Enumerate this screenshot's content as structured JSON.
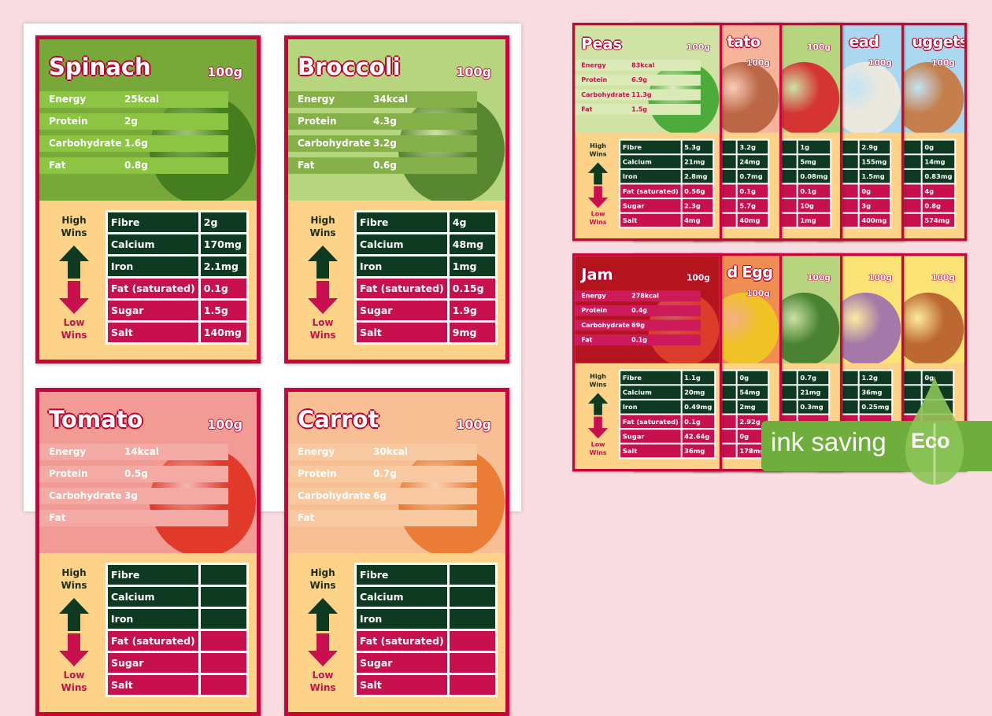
{
  "table_labels": [
    "Fibre",
    "Calcium",
    "Iron",
    "Fat (saturated)",
    "Sugar",
    "Salt"
  ],
  "high_wins": "High Wins",
  "low_wins": "Low Wins",
  "colors": {
    "border": "#c6053e",
    "lower_panel": "#fdd38a",
    "high_row": "#0e3a22",
    "low_row": "#c8104e",
    "eco_green": "#6fae3c"
  },
  "cards": [
    {
      "title": "Spinach",
      "weight": "100g",
      "bg": "#79a83a",
      "bar": "#8cc443",
      "food": "#3f7a1c",
      "nutrients": [
        [
          "Energy",
          "25kcal"
        ],
        [
          "Protein",
          "2g"
        ],
        [
          "Carbohydrate",
          "1.6g"
        ],
        [
          "Fat",
          "0.8g"
        ]
      ],
      "values": [
        "2g",
        "170mg",
        "2.1mg",
        "0.1g",
        "1.5g",
        "140mg"
      ]
    },
    {
      "title": "Broccoli",
      "weight": "100g",
      "bg": "#b7d57f",
      "bar": "#86b04a",
      "food": "#4e7e2a",
      "nutrients": [
        [
          "Energy",
          "34kcal"
        ],
        [
          "Protein",
          "4.3g"
        ],
        [
          "Carbohydrate",
          "3.2g"
        ],
        [
          "Fat",
          "0.6g"
        ]
      ],
      "values": [
        "4g",
        "48mg",
        "1mg",
        "0.15g",
        "1.9g",
        "9mg"
      ]
    },
    {
      "title": "Tomato",
      "weight": "100g",
      "bg": "#f29a94",
      "bar": "#f4aaa4",
      "food": "#e0301e",
      "nutrients": [
        [
          "Energy",
          "14kcal"
        ],
        [
          "Protein",
          "0.5g"
        ],
        [
          "Carbohydrate",
          "3g"
        ],
        [
          "Fat",
          ""
        ]
      ],
      "values": [
        "",
        "",
        "",
        "",
        "",
        ""
      ]
    },
    {
      "title": "Carrot",
      "weight": "100g",
      "bg": "#f7bf93",
      "bar": "#f8c9a1",
      "food": "#e8742c",
      "nutrients": [
        [
          "Energy",
          "30kcal"
        ],
        [
          "Protein",
          "0.7g"
        ],
        [
          "Carbohydrate",
          "6g"
        ],
        [
          "Fat",
          ""
        ]
      ],
      "values": [
        "",
        "",
        "",
        "",
        "",
        ""
      ]
    },
    {
      "title": "Peas",
      "weight": "100g",
      "bg": "#cfe3a4",
      "bar": "#dceab8",
      "food": "#3da52e",
      "text": "#c8104e",
      "nutrients": [
        [
          "Energy",
          "83kcal"
        ],
        [
          "Protein",
          "6.9g"
        ],
        [
          "Carbohydrate",
          "11.3g"
        ],
        [
          "Fat",
          "1.5g"
        ]
      ],
      "values": [
        "5.3g",
        "21mg",
        "2.8mg",
        "0.56g",
        "2.3g",
        "4mg"
      ]
    },
    {
      "title": "tato",
      "weight": "100g",
      "bg": "#f6b59a",
      "bar": "#f8c7b0",
      "food": "#b55e3c",
      "nutrients": [],
      "values": [
        "3.2g",
        "24mg",
        "0.7mg",
        "0.1g",
        "5.7g",
        "40mg"
      ]
    },
    {
      "title": "",
      "weight": "100g",
      "bg": "#b7d57f",
      "bar": "#c5dd93",
      "food": "#d8222a",
      "nutrients": [],
      "values": [
        "1g",
        "5mg",
        "0.08mg",
        "0.1g",
        "10g",
        "1mg"
      ]
    },
    {
      "title": "ead",
      "weight": "100g",
      "bg": "#a9d8f0",
      "bar": "#f6d9b0",
      "food": "#f2eadc",
      "nutrients": [],
      "values": [
        "2.9g",
        "155mg",
        "1.5mg",
        "0g",
        "3g",
        "400mg"
      ]
    },
    {
      "title": "uggets",
      "weight": "100g",
      "bg": "#a9d8f0",
      "bar": "#e9a66a",
      "food": "#c8743a",
      "nutrients": [],
      "values": [
        "0g",
        "14mg",
        "0.83mg",
        "4g",
        "0.8g",
        "574mg"
      ]
    },
    {
      "title": "Jam",
      "weight": "100g",
      "bg": "#b3141e",
      "bar": "#cc1a5a",
      "food": "#e0402c",
      "nutrients": [
        [
          "Energy",
          "278kcal"
        ],
        [
          "Protein",
          "0.4g"
        ],
        [
          "Carbohydrate",
          "69g"
        ],
        [
          "Fat",
          "0.1g"
        ]
      ],
      "values": [
        "1.1g",
        "20mg",
        "0.49mg",
        "0.1g",
        "42.64g",
        "36mg"
      ]
    },
    {
      "title": "d Egg",
      "weight": "100g",
      "bg": "#ef8d52",
      "bar": "#f3a36f",
      "food": "#f0c820",
      "nutrients": [],
      "values": [
        "0g",
        "54mg",
        "2mg",
        "2.92g",
        "0g",
        "178mg"
      ]
    },
    {
      "title": "",
      "weight": "100g",
      "bg": "#b7d57f",
      "bar": "#4f8a34",
      "food": "#3d7a2a",
      "nutrients": [],
      "values": [
        "0.7g",
        "21mg",
        "0.3mg",
        "",
        "",
        ""
      ]
    },
    {
      "title": "",
      "weight": "100g",
      "bg": "#fbe376",
      "bar": "#fcea97",
      "food": "#9a6cae",
      "nutrients": [],
      "values": [
        "1.2g",
        "36mg",
        "0.25mg",
        "",
        "",
        ""
      ]
    },
    {
      "title": "",
      "weight": "100g",
      "bg": "#fbe376",
      "bar": "#f1d8b0",
      "food": "#b65a2a",
      "nutrients": [],
      "values": [
        "0g",
        "",
        "",
        "",
        "",
        ""
      ]
    }
  ],
  "eco": {
    "text": "ink saving",
    "label": "Eco"
  }
}
